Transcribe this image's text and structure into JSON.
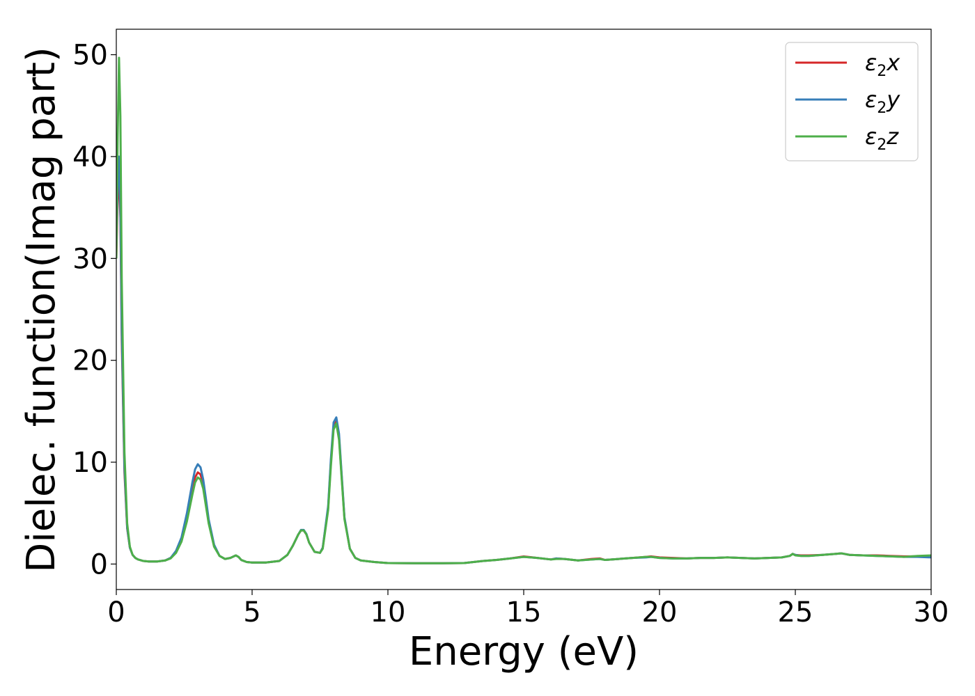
{
  "chart_data": {
    "type": "line",
    "title": "",
    "xlabel": "Energy (eV)",
    "ylabel": "Dielec. function(Imag part)",
    "xlim": [
      0,
      30
    ],
    "ylim": [
      -2.5,
      52.5
    ],
    "xticks": [
      "0",
      "5",
      "10",
      "15",
      "20",
      "25",
      "30"
    ],
    "xtick_values": [
      0,
      5,
      10,
      15,
      20,
      25,
      30
    ],
    "yticks": [
      "0",
      "10",
      "20",
      "30",
      "40",
      "50"
    ],
    "ytick_values": [
      0,
      10,
      20,
      30,
      40,
      50
    ],
    "grid": false,
    "legend_position": "top-right",
    "series": [
      {
        "name": "ε2x",
        "name_base": "ε",
        "name_sub": "2",
        "name_var": "x",
        "color": "#d62728",
        "x": [
          0.0,
          0.05,
          0.1,
          0.15,
          0.2,
          0.3,
          0.4,
          0.5,
          0.6,
          0.7,
          0.8,
          1.0,
          1.2,
          1.5,
          1.8,
          2.0,
          2.2,
          2.4,
          2.6,
          2.8,
          2.9,
          3.0,
          3.1,
          3.2,
          3.3,
          3.4,
          3.6,
          3.8,
          4.0,
          4.2,
          4.4,
          4.5,
          4.6,
          4.8,
          5.0,
          5.5,
          6.0,
          6.3,
          6.5,
          6.7,
          6.8,
          6.9,
          7.0,
          7.1,
          7.3,
          7.5,
          7.6,
          7.8,
          7.9,
          8.0,
          8.1,
          8.2,
          8.3,
          8.4,
          8.6,
          8.8,
          9.0,
          9.5,
          10.0,
          11.0,
          12.0,
          12.8,
          13.5,
          14.0,
          14.5,
          15.0,
          15.5,
          16.0,
          16.2,
          16.5,
          17.0,
          17.5,
          17.8,
          18.0,
          18.5,
          19.0,
          19.5,
          19.7,
          20.0,
          20.5,
          21.0,
          21.5,
          22.0,
          22.5,
          23.0,
          23.5,
          24.0,
          24.5,
          24.8,
          24.9,
          25.0,
          25.2,
          25.5,
          26.0,
          26.5,
          26.7,
          27.0,
          27.5,
          28.0,
          28.5,
          29.0,
          29.5,
          30.0
        ],
        "y": [
          30.0,
          36.0,
          38.0,
          34.0,
          22.0,
          9.0,
          3.5,
          1.6,
          0.9,
          0.6,
          0.45,
          0.3,
          0.25,
          0.25,
          0.35,
          0.6,
          1.2,
          2.4,
          4.5,
          7.2,
          8.5,
          9.0,
          8.8,
          7.8,
          6.0,
          4.2,
          1.8,
          0.8,
          0.5,
          0.6,
          0.85,
          0.7,
          0.4,
          0.2,
          0.15,
          0.15,
          0.3,
          0.9,
          1.8,
          2.9,
          3.3,
          3.3,
          2.9,
          2.1,
          1.2,
          1.1,
          1.6,
          5.5,
          10.0,
          13.5,
          14.1,
          12.5,
          8.5,
          4.5,
          1.5,
          0.6,
          0.35,
          0.2,
          0.1,
          0.08,
          0.08,
          0.1,
          0.3,
          0.4,
          0.55,
          0.75,
          0.6,
          0.45,
          0.55,
          0.5,
          0.35,
          0.5,
          0.55,
          0.4,
          0.5,
          0.6,
          0.7,
          0.75,
          0.65,
          0.6,
          0.55,
          0.6,
          0.6,
          0.65,
          0.6,
          0.55,
          0.6,
          0.65,
          0.8,
          1.0,
          0.9,
          0.85,
          0.85,
          0.9,
          1.0,
          1.05,
          0.9,
          0.85,
          0.85,
          0.8,
          0.75,
          0.75,
          0.8
        ]
      },
      {
        "name": "ε2y",
        "name_base": "ε",
        "name_sub": "2",
        "name_var": "y",
        "color": "#377eb8",
        "x": [
          0.0,
          0.05,
          0.1,
          0.15,
          0.2,
          0.3,
          0.4,
          0.5,
          0.6,
          0.7,
          0.8,
          1.0,
          1.2,
          1.5,
          1.8,
          2.0,
          2.2,
          2.4,
          2.6,
          2.8,
          2.9,
          3.0,
          3.1,
          3.2,
          3.3,
          3.4,
          3.6,
          3.8,
          4.0,
          4.2,
          4.4,
          4.5,
          4.6,
          4.8,
          5.0,
          5.5,
          6.0,
          6.3,
          6.5,
          6.7,
          6.8,
          6.9,
          7.0,
          7.1,
          7.3,
          7.5,
          7.6,
          7.8,
          7.9,
          8.0,
          8.1,
          8.2,
          8.3,
          8.4,
          8.6,
          8.8,
          9.0,
          9.5,
          10.0,
          11.0,
          12.0,
          12.8,
          13.5,
          14.0,
          14.5,
          15.0,
          15.5,
          16.0,
          16.2,
          16.5,
          17.0,
          17.5,
          17.8,
          18.0,
          18.5,
          19.0,
          19.5,
          19.7,
          20.0,
          20.5,
          21.0,
          21.5,
          22.0,
          22.5,
          23.0,
          23.5,
          24.0,
          24.5,
          24.8,
          24.9,
          25.0,
          25.2,
          25.5,
          26.0,
          26.5,
          26.7,
          27.0,
          27.5,
          28.0,
          28.5,
          29.0,
          29.5,
          30.0
        ],
        "y": [
          31.0,
          37.0,
          40.0,
          35.0,
          23.0,
          9.5,
          3.6,
          1.6,
          0.9,
          0.6,
          0.45,
          0.3,
          0.25,
          0.25,
          0.35,
          0.6,
          1.3,
          2.6,
          5.0,
          8.0,
          9.3,
          9.8,
          9.5,
          8.3,
          6.4,
          4.4,
          1.9,
          0.8,
          0.5,
          0.6,
          0.85,
          0.7,
          0.4,
          0.2,
          0.15,
          0.15,
          0.3,
          0.9,
          1.8,
          2.9,
          3.35,
          3.35,
          2.95,
          2.1,
          1.2,
          1.1,
          1.6,
          5.7,
          10.3,
          13.9,
          14.4,
          12.8,
          8.7,
          4.6,
          1.5,
          0.6,
          0.35,
          0.2,
          0.1,
          0.08,
          0.08,
          0.1,
          0.3,
          0.4,
          0.55,
          0.7,
          0.6,
          0.45,
          0.55,
          0.5,
          0.35,
          0.45,
          0.5,
          0.4,
          0.5,
          0.6,
          0.65,
          0.7,
          0.6,
          0.55,
          0.55,
          0.6,
          0.6,
          0.65,
          0.6,
          0.55,
          0.6,
          0.65,
          0.8,
          1.0,
          0.9,
          0.8,
          0.8,
          0.9,
          1.0,
          1.05,
          0.9,
          0.85,
          0.8,
          0.75,
          0.7,
          0.7,
          0.65
        ]
      },
      {
        "name": "ε2z",
        "name_base": "ε",
        "name_sub": "2",
        "name_var": "z",
        "color": "#4daf4a",
        "x": [
          0.0,
          0.05,
          0.1,
          0.15,
          0.2,
          0.3,
          0.4,
          0.5,
          0.6,
          0.7,
          0.8,
          1.0,
          1.2,
          1.5,
          1.8,
          2.0,
          2.2,
          2.4,
          2.6,
          2.8,
          2.9,
          3.0,
          3.1,
          3.2,
          3.3,
          3.4,
          3.6,
          3.8,
          4.0,
          4.2,
          4.4,
          4.5,
          4.6,
          4.8,
          5.0,
          5.5,
          6.0,
          6.3,
          6.5,
          6.7,
          6.8,
          6.9,
          7.0,
          7.1,
          7.3,
          7.5,
          7.6,
          7.8,
          7.9,
          8.0,
          8.1,
          8.2,
          8.3,
          8.4,
          8.6,
          8.8,
          9.0,
          9.5,
          10.0,
          11.0,
          12.0,
          12.8,
          13.5,
          14.0,
          14.5,
          15.0,
          15.5,
          16.0,
          16.2,
          16.5,
          17.0,
          17.5,
          17.8,
          18.0,
          18.5,
          19.0,
          19.5,
          19.7,
          20.0,
          20.5,
          21.0,
          21.5,
          22.0,
          22.5,
          23.0,
          23.5,
          24.0,
          24.5,
          24.8,
          24.9,
          25.0,
          25.2,
          25.5,
          26.0,
          26.5,
          26.7,
          27.0,
          27.5,
          28.0,
          28.5,
          29.0,
          29.5,
          30.0
        ],
        "y": [
          30.0,
          42.0,
          49.7,
          44.0,
          28.0,
          11.0,
          4.0,
          1.7,
          0.9,
          0.6,
          0.45,
          0.3,
          0.25,
          0.25,
          0.35,
          0.55,
          1.1,
          2.2,
          4.2,
          6.8,
          8.0,
          8.5,
          8.3,
          7.4,
          5.7,
          4.0,
          1.7,
          0.8,
          0.5,
          0.6,
          0.85,
          0.7,
          0.4,
          0.2,
          0.15,
          0.15,
          0.3,
          0.9,
          1.8,
          2.9,
          3.3,
          3.3,
          2.9,
          2.1,
          1.2,
          1.1,
          1.5,
          5.3,
          9.6,
          13.2,
          13.8,
          12.2,
          8.3,
          4.4,
          1.5,
          0.6,
          0.35,
          0.2,
          0.1,
          0.08,
          0.08,
          0.1,
          0.3,
          0.4,
          0.55,
          0.7,
          0.6,
          0.45,
          0.5,
          0.5,
          0.35,
          0.45,
          0.5,
          0.4,
          0.5,
          0.6,
          0.7,
          0.7,
          0.6,
          0.55,
          0.55,
          0.6,
          0.6,
          0.65,
          0.6,
          0.55,
          0.6,
          0.65,
          0.8,
          1.0,
          0.85,
          0.8,
          0.8,
          0.9,
          1.0,
          1.05,
          0.9,
          0.85,
          0.8,
          0.75,
          0.7,
          0.8,
          0.85
        ]
      }
    ]
  }
}
